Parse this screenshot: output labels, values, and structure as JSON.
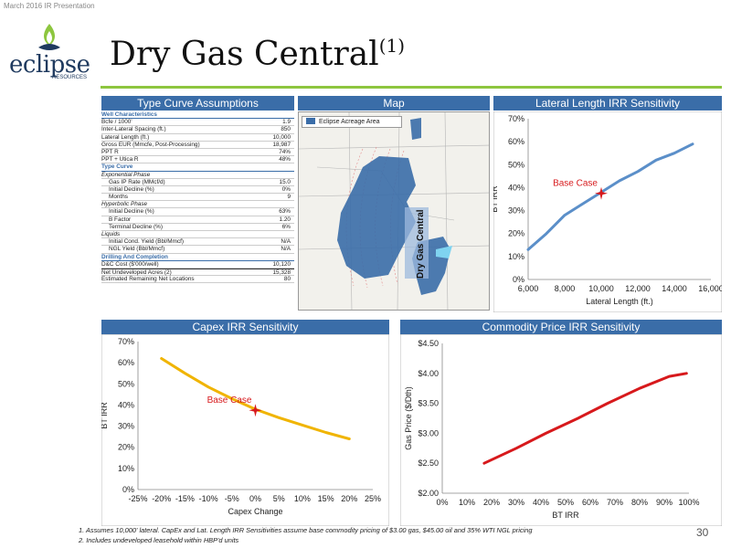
{
  "header": {
    "top_label": "March 2016 IR Presentation",
    "logo_text": "eclipse",
    "logo_sub": "RESOURCES",
    "title": "Dry Gas Central",
    "title_note": "(1)",
    "page_number": "30"
  },
  "type_curve": {
    "header": "Type Curve Assumptions",
    "rows": [
      {
        "label": "Well Characteristics",
        "value": "",
        "style": "section"
      },
      {
        "label": "Bcfe / 1000'",
        "value": "1.9",
        "style": ""
      },
      {
        "label": "Inter-Lateral Spacing (ft.)",
        "value": "850",
        "style": ""
      },
      {
        "label": "Lateral Length (ft.)",
        "value": "10,000",
        "style": ""
      },
      {
        "label": "Gross EUR (Mmcfe, Post-Processing)",
        "value": "18,987",
        "style": ""
      },
      {
        "label": "PPT R",
        "value": "74%",
        "style": ""
      },
      {
        "label": "PPT + Utica R",
        "value": "48%",
        "style": ""
      },
      {
        "label": "Type Curve",
        "value": "",
        "style": "section"
      },
      {
        "label": "Exponential Phase",
        "value": "",
        "style": "ital"
      },
      {
        "label": "Gas IP Rate (MMcf/d)",
        "value": "15.0",
        "style": "indent"
      },
      {
        "label": "Initial Decline (%)",
        "value": "0%",
        "style": "indent"
      },
      {
        "label": "Months",
        "value": "9",
        "style": "indent"
      },
      {
        "label": "Hyperbolic Phase",
        "value": "",
        "style": "ital"
      },
      {
        "label": "Initial Decline (%)",
        "value": "63%",
        "style": "indent"
      },
      {
        "label": "B Factor",
        "value": "1.20",
        "style": "indent"
      },
      {
        "label": "Terminal Decline (%)",
        "value": "6%",
        "style": "indent"
      },
      {
        "label": "Liquids",
        "value": "",
        "style": "ital"
      },
      {
        "label": "Initial Cond. Yield (Bbl/Mmcf)",
        "value": "N/A",
        "style": "indent"
      },
      {
        "label": "NGL Yield (Bbl/Mmcf)",
        "value": "N/A",
        "style": "indent"
      },
      {
        "label": "Drilling And Completion",
        "value": "",
        "style": "section"
      },
      {
        "label": "D&C Cost ($'000/well)",
        "value": "10,120",
        "style": ""
      },
      {
        "label": "Net Undeveloped Acres (2)",
        "value": "15,328",
        "style": "top-border"
      },
      {
        "label": "Estimated Remaining Net Locations",
        "value": "80",
        "style": ""
      }
    ]
  },
  "map": {
    "header": "Map",
    "legend": "Eclipse Acreage Area",
    "label": "Dry Gas Central",
    "acreage_color": "#3a6da8"
  },
  "chart_data": [
    {
      "id": "lateral",
      "type": "line",
      "title": "Lateral Length IRR Sensitivity",
      "xlabel": "Lateral Length (ft.)",
      "ylabel": "BT IRR",
      "xlim": [
        6000,
        16000
      ],
      "ylim": [
        0,
        70
      ],
      "x_ticks": [
        6000,
        8000,
        10000,
        12000,
        14000,
        16000
      ],
      "x_tick_labels": [
        "6,000",
        "8,000",
        "10,000",
        "12,000",
        "14,000",
        "16,000"
      ],
      "y_ticks": [
        0,
        10,
        20,
        30,
        40,
        50,
        60,
        70
      ],
      "y_tick_labels": [
        "0%",
        "10%",
        "20%",
        "30%",
        "40%",
        "50%",
        "60%",
        "70%"
      ],
      "series": [
        {
          "x": [
            6000,
            7000,
            8000,
            9000,
            10000,
            11000,
            12000,
            13000,
            14000,
            15000
          ],
          "y": [
            13,
            20,
            28,
            33,
            38,
            43,
            47,
            52,
            55,
            59
          ],
          "color": "#5b8fc9"
        }
      ],
      "marker": {
        "x": 10000,
        "y": 37.5,
        "label": "Base Case"
      },
      "grid": false
    },
    {
      "id": "capex",
      "type": "line",
      "title": "Capex IRR Sensitivity",
      "xlabel": "Capex Change",
      "ylabel": "BT IRR",
      "xlim": [
        -25,
        25
      ],
      "ylim": [
        0,
        70
      ],
      "x_ticks": [
        -25,
        -20,
        -15,
        -10,
        -5,
        0,
        5,
        10,
        15,
        20,
        25
      ],
      "x_tick_labels": [
        "-25%",
        "-20%",
        "-15%",
        "-10%",
        "-5%",
        "0%",
        "5%",
        "10%",
        "15%",
        "20%",
        "25%"
      ],
      "y_ticks": [
        0,
        10,
        20,
        30,
        40,
        50,
        60,
        70
      ],
      "y_tick_labels": [
        "0%",
        "10%",
        "20%",
        "30%",
        "40%",
        "50%",
        "60%",
        "70%"
      ],
      "series": [
        {
          "x": [
            -20,
            -15,
            -10,
            -5,
            0,
            5,
            10,
            15,
            20
          ],
          "y": [
            62,
            55,
            48.5,
            43,
            38,
            34,
            30.5,
            27,
            24
          ],
          "color": "#f0b400"
        }
      ],
      "marker": {
        "x": 0,
        "y": 37.5,
        "label": "Base Case"
      },
      "grid": false
    },
    {
      "id": "commodity",
      "type": "line",
      "title": "Commodity Price IRR Sensitivity",
      "xlabel": "BT IRR",
      "ylabel": "Gas Price ($/Dth)",
      "xlim": [
        0,
        100
      ],
      "ylim": [
        2.0,
        4.5
      ],
      "x_ticks": [
        0,
        10,
        20,
        30,
        40,
        50,
        60,
        70,
        80,
        90,
        100
      ],
      "x_tick_labels": [
        "0%",
        "10%",
        "20%",
        "30%",
        "40%",
        "50%",
        "60%",
        "70%",
        "80%",
        "90%",
        "100%"
      ],
      "y_ticks": [
        2.0,
        2.5,
        3.0,
        3.5,
        4.0,
        4.5
      ],
      "y_tick_labels": [
        "$2.00",
        "$2.50",
        "$3.00",
        "$3.50",
        "$4.00",
        "$4.50"
      ],
      "series": [
        {
          "x": [
            17,
            30,
            42,
            55,
            67,
            80,
            92,
            99
          ],
          "y": [
            2.5,
            2.75,
            3.0,
            3.25,
            3.5,
            3.75,
            3.95,
            4.0
          ],
          "color": "#d7191c"
        }
      ],
      "grid": false
    }
  ],
  "footnotes": [
    "1.    Assumes 10,000' lateral. CapEx and Lat. Length IRR Sensitivities assume base commodity pricing of $3.00 gas, $45.00 oil and 35% WTI NGL pricing",
    "2.    Includes undeveloped leasehold within HBP'd units"
  ]
}
